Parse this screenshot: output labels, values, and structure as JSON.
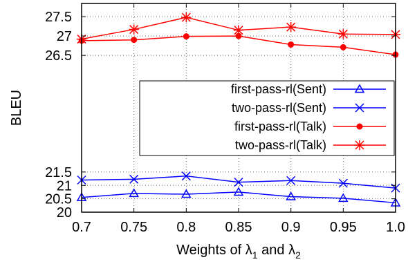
{
  "chart_data": {
    "type": "line",
    "xlabel_prefix": "Weights of ",
    "xlabel_sym1": "λ",
    "xlabel_sub1": "1",
    "xlabel_mid": " and ",
    "xlabel_sym2": "λ",
    "xlabel_sub2": "2",
    "ylabel": "BLEU",
    "x": [
      0.7,
      0.75,
      0.8,
      0.85,
      0.9,
      0.95,
      1.0
    ],
    "x_tick_labels": [
      "0.7",
      "0.75",
      "0.8",
      "0.85",
      "0.9",
      "0.95",
      "1.0"
    ],
    "xlim": [
      0.7,
      1.0
    ],
    "broken_y_axis": true,
    "y_lower_range": [
      20,
      21.6
    ],
    "y_upper_range": [
      26.2,
      27.75
    ],
    "y_ticks_lower": [
      {
        "v": 20,
        "label": "20"
      },
      {
        "v": 20.5,
        "label": "20.5"
      },
      {
        "v": 21,
        "label": "21"
      },
      {
        "v": 21.5,
        "label": "21.5"
      }
    ],
    "y_ticks_upper": [
      {
        "v": 26.5,
        "label": "26.5"
      },
      {
        "v": 27,
        "label": "27"
      },
      {
        "v": 27.5,
        "label": "27.5"
      }
    ],
    "grid": true,
    "legend_position": "center-right",
    "series": [
      {
        "name": "first-pass-rl(Sent)",
        "color": "#0000ff",
        "marker": "triangle-open",
        "panel": "lower",
        "values": [
          20.55,
          20.7,
          20.67,
          20.75,
          20.58,
          20.52,
          20.35
        ]
      },
      {
        "name": "two-pass-rl(Sent)",
        "color": "#0000ff",
        "marker": "x",
        "panel": "lower",
        "values": [
          21.2,
          21.23,
          21.35,
          21.12,
          21.18,
          21.08,
          20.9
        ]
      },
      {
        "name": "first-pass-rl(Talk)",
        "color": "#ff0000",
        "marker": "filled-circle",
        "panel": "upper",
        "values": [
          26.88,
          26.9,
          26.99,
          27.0,
          26.78,
          26.71,
          26.52
        ]
      },
      {
        "name": "two-pass-rl(Talk)",
        "color": "#ff0000",
        "marker": "star",
        "panel": "upper",
        "values": [
          26.92,
          27.17,
          27.48,
          27.15,
          27.23,
          27.05,
          27.04
        ]
      }
    ]
  }
}
